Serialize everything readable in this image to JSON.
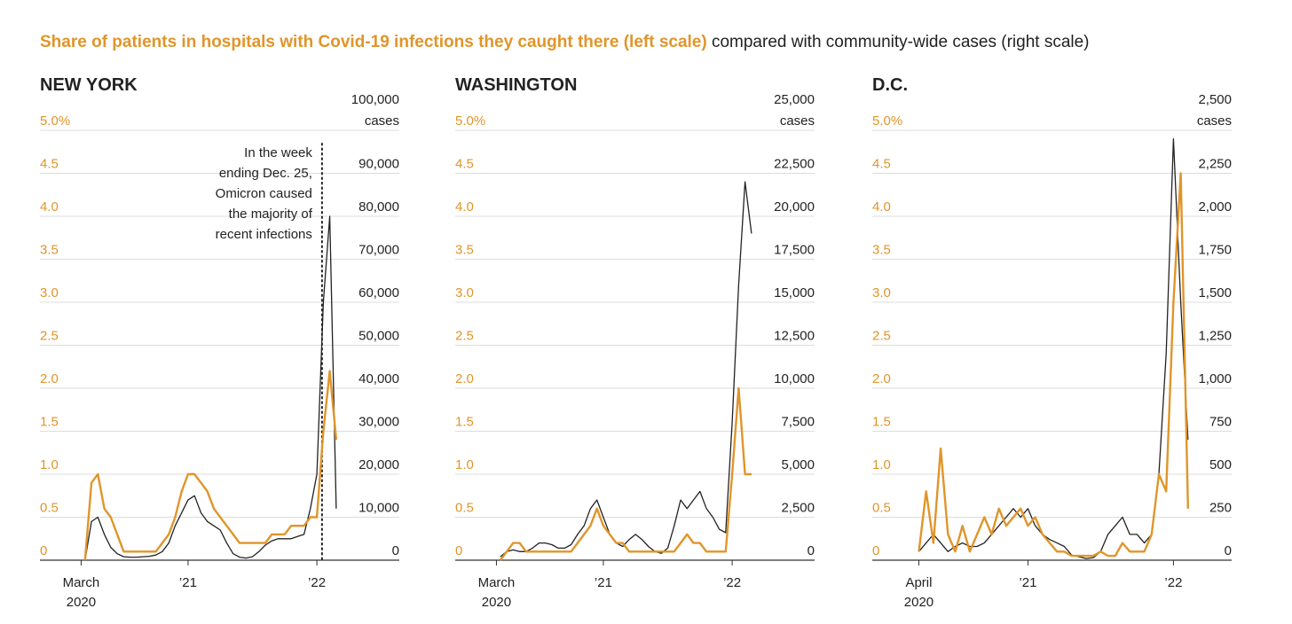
{
  "title": {
    "highlight": "Share of patients in hospitals with Covid-19 infections they caught there (left scale)",
    "rest": " compared with community-wide cases (right scale)"
  },
  "chart_data": [
    {
      "type": "line",
      "title": "NEW YORK",
      "x": [
        2020.2,
        2020.25,
        2020.3,
        2020.35,
        2020.4,
        2020.45,
        2020.5,
        2020.55,
        2020.6,
        2020.65,
        2020.7,
        2020.75,
        2020.8,
        2020.85,
        2020.9,
        2020.95,
        2021.0,
        2021.05,
        2021.1,
        2021.15,
        2021.2,
        2021.25,
        2021.3,
        2021.35,
        2021.4,
        2021.45,
        2021.5,
        2021.55,
        2021.6,
        2021.65,
        2021.7,
        2021.75,
        2021.8,
        2021.85,
        2021.9,
        2021.95,
        2022.0,
        2022.05,
        2022.1,
        2022.15
      ],
      "xlim": [
        2019.85,
        2022.64
      ],
      "xticks": [
        {
          "value": 2020.17,
          "label": "March 2020"
        },
        {
          "value": 2021,
          "label": "’21"
        },
        {
          "value": 2022,
          "label": "’22"
        }
      ],
      "ylim": [
        0,
        5
      ],
      "yticks": [
        0,
        0.5,
        {
          "value": 1,
          "label": "1.0"
        },
        1.5,
        {
          "value": 2,
          "label": "2.0"
        },
        2.5,
        {
          "value": 3,
          "label": "3.0"
        },
        3.5,
        {
          "value": 4,
          "label": "4.0"
        },
        4.5,
        {
          "value": 5,
          "label": "5.0%"
        }
      ],
      "y2lim": [
        0,
        100000
      ],
      "y2ticks": [
        0,
        {
          "value": 10000,
          "label": "10,000"
        },
        {
          "value": 20000,
          "label": "20,000"
        },
        {
          "value": 30000,
          "label": "30,000"
        },
        {
          "value": 40000,
          "label": "40,000"
        },
        {
          "value": 50000,
          "label": "50,000"
        },
        {
          "value": 60000,
          "label": "60,000"
        },
        {
          "value": 70000,
          "label": "70,000"
        },
        {
          "value": 80000,
          "label": "80,000"
        },
        {
          "value": 90000,
          "label": "90,000"
        },
        {
          "value": 100000,
          "label": "100,000"
        }
      ],
      "y2label": "cases",
      "grid": true,
      "annotation": {
        "x": 2022.04,
        "lines": [
          "In the week",
          "ending Dec. 25,",
          "Omicron caused",
          "the majority of",
          "recent infections"
        ]
      },
      "series": [
        {
          "color": "#222222",
          "axis": "y2",
          "values": [
            0,
            9000,
            10000,
            6000,
            3000,
            1500,
            800,
            700,
            700,
            800,
            900,
            1200,
            2000,
            4000,
            8000,
            11000,
            14000,
            15000,
            11000,
            9000,
            8000,
            7000,
            4000,
            1500,
            700,
            500,
            800,
            2000,
            3500,
            4500,
            5000,
            5000,
            5000,
            5500,
            6000,
            12000,
            20000,
            60000,
            80000,
            12000
          ]
        },
        {
          "color": "#e0952a",
          "values": [
            0,
            0.9,
            1.0,
            0.6,
            0.5,
            0.3,
            0.1,
            0.1,
            0.1,
            0.1,
            0.1,
            0.1,
            0.2,
            0.3,
            0.5,
            0.8,
            1.0,
            1.0,
            0.9,
            0.8,
            0.6,
            0.5,
            0.4,
            0.3,
            0.2,
            0.2,
            0.2,
            0.2,
            0.2,
            0.3,
            0.3,
            0.3,
            0.4,
            0.4,
            0.4,
            0.5,
            0.5,
            1.5,
            2.2,
            1.4
          ]
        }
      ]
    },
    {
      "type": "line",
      "title": "WASHINGTON",
      "x": [
        2020.2,
        2020.25,
        2020.3,
        2020.35,
        2020.4,
        2020.45,
        2020.5,
        2020.55,
        2020.6,
        2020.65,
        2020.7,
        2020.75,
        2020.8,
        2020.85,
        2020.9,
        2020.95,
        2021.0,
        2021.05,
        2021.1,
        2021.15,
        2021.2,
        2021.25,
        2021.3,
        2021.35,
        2021.4,
        2021.45,
        2021.5,
        2021.55,
        2021.6,
        2021.65,
        2021.7,
        2021.75,
        2021.8,
        2021.85,
        2021.9,
        2021.95,
        2022.0,
        2022.05,
        2022.1,
        2022.15
      ],
      "xlim": [
        2019.85,
        2022.64
      ],
      "xticks": [
        {
          "value": 2020.17,
          "label": "March 2020"
        },
        {
          "value": 2021,
          "label": "’21"
        },
        {
          "value": 2022,
          "label": "’22"
        }
      ],
      "ylim": [
        0,
        5
      ],
      "yticks": [
        0,
        0.5,
        {
          "value": 1,
          "label": "1.0"
        },
        1.5,
        {
          "value": 2,
          "label": "2.0"
        },
        2.5,
        {
          "value": 3,
          "label": "3.0"
        },
        3.5,
        {
          "value": 4,
          "label": "4.0"
        },
        4.5,
        {
          "value": 5,
          "label": "5.0%"
        }
      ],
      "y2lim": [
        0,
        25000
      ],
      "y2ticks": [
        0,
        {
          "value": 2500,
          "label": "2,500"
        },
        {
          "value": 5000,
          "label": "5,000"
        },
        {
          "value": 7500,
          "label": "7,500"
        },
        {
          "value": 10000,
          "label": "10,000"
        },
        {
          "value": 12500,
          "label": "12,500"
        },
        {
          "value": 15000,
          "label": "15,000"
        },
        {
          "value": 17500,
          "label": "17,500"
        },
        {
          "value": 20000,
          "label": "20,000"
        },
        {
          "value": 22500,
          "label": "22,500"
        },
        {
          "value": 25000,
          "label": "25,000"
        }
      ],
      "y2label": "cases",
      "grid": true,
      "series": [
        {
          "color": "#222222",
          "axis": "y2",
          "values": [
            200,
            500,
            600,
            500,
            500,
            700,
            1000,
            1000,
            900,
            700,
            700,
            900,
            1500,
            2000,
            3000,
            3500,
            2500,
            1500,
            1000,
            800,
            1200,
            1500,
            1200,
            800,
            500,
            400,
            700,
            2000,
            3500,
            3000,
            3500,
            4000,
            3000,
            2500,
            1800,
            1600,
            8000,
            16000,
            22000,
            19000
          ]
        },
        {
          "color": "#e0952a",
          "values": [
            0,
            0.1,
            0.2,
            0.2,
            0.1,
            0.1,
            0.1,
            0.1,
            0.1,
            0.1,
            0.1,
            0.1,
            0.2,
            0.3,
            0.4,
            0.6,
            0.4,
            0.3,
            0.2,
            0.2,
            0.1,
            0.1,
            0.1,
            0.1,
            0.1,
            0.1,
            0.1,
            0.1,
            0.2,
            0.3,
            0.2,
            0.2,
            0.1,
            0.1,
            0.1,
            0.1,
            1.0,
            2.0,
            1.0,
            1.0
          ]
        }
      ]
    },
    {
      "type": "line",
      "title": "D.C.",
      "x": [
        2020.2,
        2020.25,
        2020.3,
        2020.35,
        2020.4,
        2020.45,
        2020.5,
        2020.55,
        2020.6,
        2020.65,
        2020.7,
        2020.75,
        2020.8,
        2020.85,
        2020.9,
        2020.95,
        2021.0,
        2021.05,
        2021.1,
        2021.15,
        2021.2,
        2021.25,
        2021.3,
        2021.35,
        2021.4,
        2021.45,
        2021.5,
        2021.55,
        2021.6,
        2021.65,
        2021.7,
        2021.75,
        2021.8,
        2021.85,
        2021.9,
        2021.95,
        2022.0,
        2022.05,
        2022.1,
        2022.15
      ],
      "xlim": [
        2019.93,
        2022.4
      ],
      "xticks": [
        {
          "value": 2020.25,
          "label": "April 2020"
        },
        {
          "value": 2021,
          "label": "’21"
        },
        {
          "value": 2022,
          "label": "’22"
        }
      ],
      "ylim": [
        0,
        5
      ],
      "yticks": [
        0,
        0.5,
        {
          "value": 1,
          "label": "1.0"
        },
        1.5,
        {
          "value": 2,
          "label": "2.0"
        },
        2.5,
        {
          "value": 3,
          "label": "3.0"
        },
        3.5,
        {
          "value": 4,
          "label": "4.0"
        },
        4.5,
        {
          "value": 5,
          "label": "5.0%"
        }
      ],
      "y2lim": [
        0,
        2500
      ],
      "y2ticks": [
        0,
        250,
        500,
        750,
        {
          "value": 1000,
          "label": "1,000"
        },
        {
          "value": 1250,
          "label": "1,250"
        },
        {
          "value": 1500,
          "label": "1,500"
        },
        {
          "value": 1750,
          "label": "1,750"
        },
        {
          "value": 2000,
          "label": "2,000"
        },
        {
          "value": 2250,
          "label": "2,250"
        },
        {
          "value": 2500,
          "label": "2,500"
        }
      ],
      "y2label": "cases",
      "grid": true,
      "series": [
        {
          "color": "#222222",
          "axis": "y2",
          "values": [
            null,
            50,
            100,
            150,
            100,
            50,
            80,
            100,
            80,
            80,
            100,
            150,
            200,
            250,
            300,
            250,
            300,
            200,
            150,
            120,
            100,
            80,
            30,
            20,
            10,
            15,
            50,
            150,
            200,
            250,
            150,
            150,
            100,
            150,
            500,
            1200,
            2450,
            1500,
            700,
            null
          ]
        },
        {
          "color": "#e0952a",
          "values": [
            null,
            0.1,
            0.8,
            0.2,
            1.3,
            0.3,
            0.1,
            0.4,
            0.1,
            0.3,
            0.5,
            0.3,
            0.6,
            0.4,
            0.5,
            0.6,
            0.4,
            0.5,
            0.3,
            0.2,
            0.1,
            0.1,
            0.05,
            0.05,
            0.05,
            0.05,
            0.1,
            0.05,
            0.05,
            0.2,
            0.1,
            0.1,
            0.1,
            0.3,
            1.0,
            0.8,
            3.0,
            4.5,
            0.6,
            null
          ]
        }
      ]
    }
  ]
}
